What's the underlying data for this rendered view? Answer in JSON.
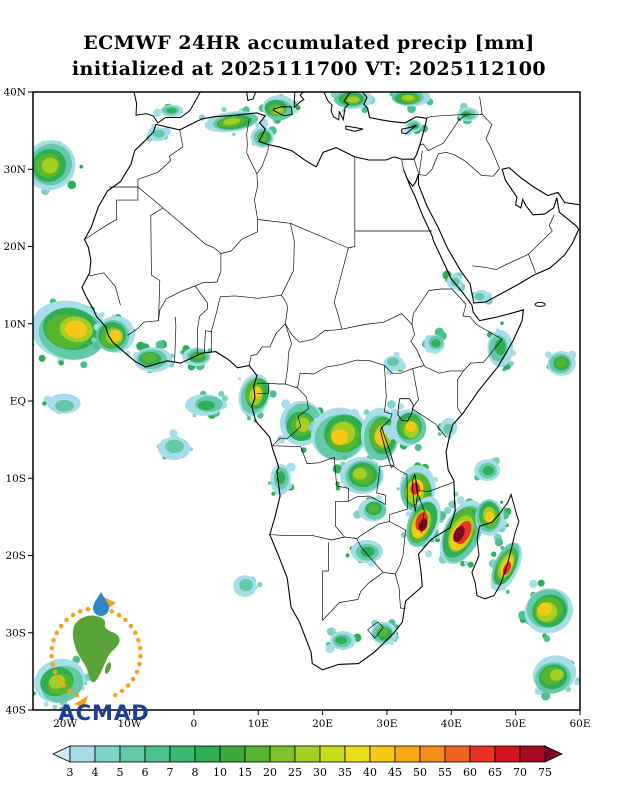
{
  "header": {
    "line1": "ECMWF 24HR accumulated precip [mm]",
    "line2": "initialized at 2025111700 VT: 2025112100"
  },
  "logo": {
    "wordmark": "ACMAD",
    "accent_green": "#5aa338",
    "accent_orange": "#f5a21b",
    "accent_blue": "#1c3e94",
    "drop_blue": "#2f86c1"
  },
  "chart_data": {
    "type": "heatmap",
    "title": "ECMWF 24HR accumulated precip [mm]",
    "subtitle": "initialized at 2025111700 VT: 2025112100",
    "model": "ECMWF",
    "variable": "24HR accumulated precip",
    "units": "mm",
    "init_time": "2025111700",
    "valid_time": "2025112100",
    "legend_position": "bottom",
    "grid": false,
    "extent": {
      "lon_min": -25,
      "lon_max": 60,
      "lat_min": -40,
      "lat_max": 40
    },
    "lat_ticks": [
      {
        "v": 40,
        "label": "40N"
      },
      {
        "v": 30,
        "label": "30N"
      },
      {
        "v": 20,
        "label": "20N"
      },
      {
        "v": 10,
        "label": "10N"
      },
      {
        "v": 0,
        "label": "EQ"
      },
      {
        "v": -10,
        "label": "10S"
      },
      {
        "v": -20,
        "label": "20S"
      },
      {
        "v": -30,
        "label": "30S"
      },
      {
        "v": -40,
        "label": "40S"
      }
    ],
    "lon_ticks": [
      {
        "v": -20,
        "label": "20W"
      },
      {
        "v": -10,
        "label": "10W"
      },
      {
        "v": 0,
        "label": "0"
      },
      {
        "v": 10,
        "label": "10E"
      },
      {
        "v": 20,
        "label": "20E"
      },
      {
        "v": 30,
        "label": "30E"
      },
      {
        "v": 40,
        "label": "40E"
      },
      {
        "v": 50,
        "label": "50E"
      },
      {
        "v": 60,
        "label": "60E"
      }
    ],
    "legend": {
      "values": [
        3,
        4,
        5,
        6,
        7,
        8,
        10,
        15,
        20,
        25,
        30,
        35,
        40,
        45,
        50,
        55,
        60,
        65,
        70,
        75
      ],
      "colors": [
        "#cfeaf2",
        "#a6dde8",
        "#7fd2c8",
        "#63c9a8",
        "#4dc18d",
        "#3bb871",
        "#2fae55",
        "#3ca93c",
        "#58b531",
        "#7cc22a",
        "#a3cf23",
        "#c9dc1d",
        "#ecdf1a",
        "#f5c916",
        "#f8a912",
        "#f68b1f",
        "#f26322",
        "#e93323",
        "#d6121f",
        "#aa0722",
        "#7e0523"
      ]
    },
    "precip_regions": [
      {
        "name": "atlantic-west-of-morocco",
        "lon": -22.5,
        "lat": 30.5,
        "rx": 4.0,
        "ry": 3.2,
        "max": 30,
        "rot": -30,
        "spots": 16
      },
      {
        "name": "morocco-north-specks",
        "lon": -5.5,
        "lat": 34.6,
        "rx": 1.6,
        "ry": 0.9,
        "max": 6,
        "rot": 0,
        "spots": 6
      },
      {
        "name": "algeria-tunisia-coast",
        "lon": 6.0,
        "lat": 36.2,
        "rx": 4.2,
        "ry": 1.3,
        "max": 25,
        "rot": -8,
        "spots": 12
      },
      {
        "name": "tunisia-gulf-gabes",
        "lon": 10.8,
        "lat": 34.2,
        "rx": 1.8,
        "ry": 1.4,
        "max": 20,
        "rot": 0,
        "spots": 8
      },
      {
        "name": "spain-south-specks",
        "lon": -3.5,
        "lat": 37.6,
        "rx": 1.8,
        "ry": 0.8,
        "max": 8,
        "rot": 0,
        "spots": 6
      },
      {
        "name": "sardinia-sicily-patch",
        "lon": 13.0,
        "lat": 37.8,
        "rx": 2.6,
        "ry": 1.6,
        "max": 30,
        "rot": 0,
        "spots": 10
      },
      {
        "name": "greece-aegean-patch",
        "lon": 24.5,
        "lat": 39.0,
        "rx": 3.0,
        "ry": 1.3,
        "max": 25,
        "rot": 0,
        "spots": 10
      },
      {
        "name": "turkey-anatolia-patch",
        "lon": 33.5,
        "lat": 39.2,
        "rx": 3.0,
        "ry": 1.2,
        "max": 30,
        "rot": 0,
        "spots": 10
      },
      {
        "name": "cyprus-levant-specks",
        "lon": 34.3,
        "lat": 35.6,
        "rx": 1.3,
        "ry": 0.8,
        "max": 8,
        "rot": 0,
        "spots": 5
      },
      {
        "name": "turkey-iraq-border-specks",
        "lon": 42.5,
        "lat": 37.0,
        "rx": 1.6,
        "ry": 0.9,
        "max": 10,
        "rot": 0,
        "spots": 6
      },
      {
        "name": "west-africa-atlantic-itcz",
        "lon": -19.0,
        "lat": 9.0,
        "rx": 6.0,
        "ry": 3.8,
        "max": 55,
        "rot": 10,
        "spots": 24
      },
      {
        "name": "guinea-coast",
        "lon": -12.5,
        "lat": 8.5,
        "rx": 3.0,
        "ry": 2.4,
        "max": 45,
        "rot": 0,
        "spots": 14
      },
      {
        "name": "liberia-ivory-coast",
        "lon": -6.5,
        "lat": 5.5,
        "rx": 3.0,
        "ry": 1.6,
        "max": 20,
        "rot": 0,
        "spots": 12
      },
      {
        "name": "ghana-benin-coast",
        "lon": 0.5,
        "lat": 5.8,
        "rx": 2.2,
        "ry": 1.2,
        "max": 15,
        "rot": 0,
        "spots": 9
      },
      {
        "name": "cameroon-gabon-equator",
        "lon": 9.6,
        "lat": 1.0,
        "rx": 2.4,
        "ry": 2.8,
        "max": 55,
        "rot": 15,
        "spots": 14
      },
      {
        "name": "equatorial-atlantic-specks",
        "lon": 2.0,
        "lat": -0.5,
        "rx": 3.0,
        "ry": 1.4,
        "max": 8,
        "rot": 0,
        "spots": 10
      },
      {
        "name": "gulf-of-guinea-south-specks",
        "lon": -3.0,
        "lat": -6.0,
        "rx": 2.5,
        "ry": 1.5,
        "max": 6,
        "rot": 0,
        "spots": 8
      },
      {
        "name": "atlantic-equator-specks",
        "lon": -20.0,
        "lat": -0.5,
        "rx": 2.6,
        "ry": 1.3,
        "max": 5,
        "rot": 0,
        "spots": 8
      },
      {
        "name": "congo-basin-west",
        "lon": 17.0,
        "lat": -3.0,
        "rx": 3.4,
        "ry": 2.9,
        "max": 30,
        "rot": 0,
        "spots": 16
      },
      {
        "name": "congo-basin-central",
        "lon": 23.0,
        "lat": -4.5,
        "rx": 4.4,
        "ry": 3.4,
        "max": 45,
        "rot": -15,
        "spots": 20
      },
      {
        "name": "drc-great-lakes",
        "lon": 29.3,
        "lat": -4.5,
        "rx": 3.0,
        "ry": 3.4,
        "max": 55,
        "rot": 0,
        "spots": 16
      },
      {
        "name": "lake-victoria-tanzania",
        "lon": 33.5,
        "lat": -3.5,
        "rx": 2.7,
        "ry": 2.4,
        "max": 45,
        "rot": 0,
        "spots": 14
      },
      {
        "name": "katanga-drc-south",
        "lon": 26.0,
        "lat": -9.5,
        "rx": 3.4,
        "ry": 2.4,
        "max": 35,
        "rot": 0,
        "spots": 14
      },
      {
        "name": "tanzania-south-malawi",
        "lon": 34.5,
        "lat": -11.5,
        "rx": 2.8,
        "ry": 2.9,
        "max": 60,
        "rot": 0,
        "spots": 14
      },
      {
        "name": "mozambique-malawi-band",
        "lon": 35.5,
        "lat": -16.0,
        "rx": 2.4,
        "ry": 3.4,
        "max": 75,
        "rot": 20,
        "spots": 16
      },
      {
        "name": "mozambique-channel",
        "lon": 41.5,
        "lat": -17.0,
        "rx": 2.9,
        "ry": 4.4,
        "max": 75,
        "rot": 25,
        "spots": 18
      },
      {
        "name": "madagascar-northwest",
        "lon": 46.0,
        "lat": -15.0,
        "rx": 2.2,
        "ry": 2.4,
        "max": 55,
        "rot": 0,
        "spots": 12
      },
      {
        "name": "madagascar-east-coast",
        "lon": 48.5,
        "lat": -21.5,
        "rx": 1.9,
        "ry": 3.4,
        "max": 70,
        "rot": 25,
        "spots": 14
      },
      {
        "name": "indian-ocean-se-madagascar",
        "lon": 55.0,
        "lat": -27.0,
        "rx": 3.8,
        "ry": 2.9,
        "max": 50,
        "rot": -20,
        "spots": 18
      },
      {
        "name": "indian-ocean-far-south",
        "lon": 56.0,
        "lat": -35.5,
        "rx": 3.4,
        "ry": 2.4,
        "max": 25,
        "rot": -15,
        "spots": 12
      },
      {
        "name": "south-africa-kzn",
        "lon": 29.5,
        "lat": -30.0,
        "rx": 2.0,
        "ry": 1.5,
        "max": 20,
        "rot": 0,
        "spots": 10
      },
      {
        "name": "south-africa-interior-specks",
        "lon": 23.0,
        "lat": -31.0,
        "rx": 2.0,
        "ry": 1.2,
        "max": 8,
        "rot": 0,
        "spots": 8
      },
      {
        "name": "botswana-zimbabwe-specks",
        "lon": 27.0,
        "lat": -19.5,
        "rx": 2.5,
        "ry": 1.5,
        "max": 10,
        "rot": 0,
        "spots": 10
      },
      {
        "name": "zambia-scattered",
        "lon": 28.0,
        "lat": -14.0,
        "rx": 2.2,
        "ry": 1.5,
        "max": 15,
        "rot": 0,
        "spots": 10
      },
      {
        "name": "angola-coast-specks",
        "lon": 13.5,
        "lat": -10.0,
        "rx": 1.6,
        "ry": 2.0,
        "max": 12,
        "rot": 0,
        "spots": 8
      },
      {
        "name": "namibia-offshore-specks",
        "lon": 8.0,
        "lat": -24.0,
        "rx": 1.8,
        "ry": 1.4,
        "max": 5,
        "rot": 0,
        "spots": 6
      },
      {
        "name": "kenya-coast-specks",
        "lon": 39.5,
        "lat": -3.5,
        "rx": 1.3,
        "ry": 1.2,
        "max": 6,
        "rot": 0,
        "spots": 6
      },
      {
        "name": "comoros-specks",
        "lon": 45.5,
        "lat": -9.0,
        "rx": 2.0,
        "ry": 1.4,
        "max": 10,
        "rot": 0,
        "spots": 8
      },
      {
        "name": "horn-somalia-specks",
        "lon": 47.5,
        "lat": 7.0,
        "rx": 2.0,
        "ry": 2.4,
        "max": 8,
        "rot": 0,
        "spots": 10
      },
      {
        "name": "somali-basin-patch",
        "lon": 57.0,
        "lat": 5.0,
        "rx": 2.2,
        "ry": 1.6,
        "max": 20,
        "rot": 0,
        "spots": 9
      },
      {
        "name": "yemen-coast-specks",
        "lon": 44.5,
        "lat": 13.5,
        "rx": 1.3,
        "ry": 0.8,
        "max": 5,
        "rot": 0,
        "spots": 5
      },
      {
        "name": "ethiopia-highlands-specks",
        "lon": 37.5,
        "lat": 7.5,
        "rx": 1.6,
        "ry": 1.2,
        "max": 8,
        "rot": 0,
        "spots": 7
      },
      {
        "name": "red-sea-south-specks",
        "lon": 40.5,
        "lat": 15.5,
        "rx": 1.2,
        "ry": 1.0,
        "max": 6,
        "rot": 0,
        "spots": 5
      },
      {
        "name": "sudd-specks",
        "lon": 31.0,
        "lat": 5.0,
        "rx": 1.6,
        "ry": 1.0,
        "max": 6,
        "rot": 0,
        "spots": 6
      },
      {
        "name": "south-atlantic-corner",
        "lon": -21.0,
        "lat": -36.5,
        "rx": 4.0,
        "ry": 2.8,
        "max": 30,
        "rot": -20,
        "spots": 14
      }
    ]
  }
}
